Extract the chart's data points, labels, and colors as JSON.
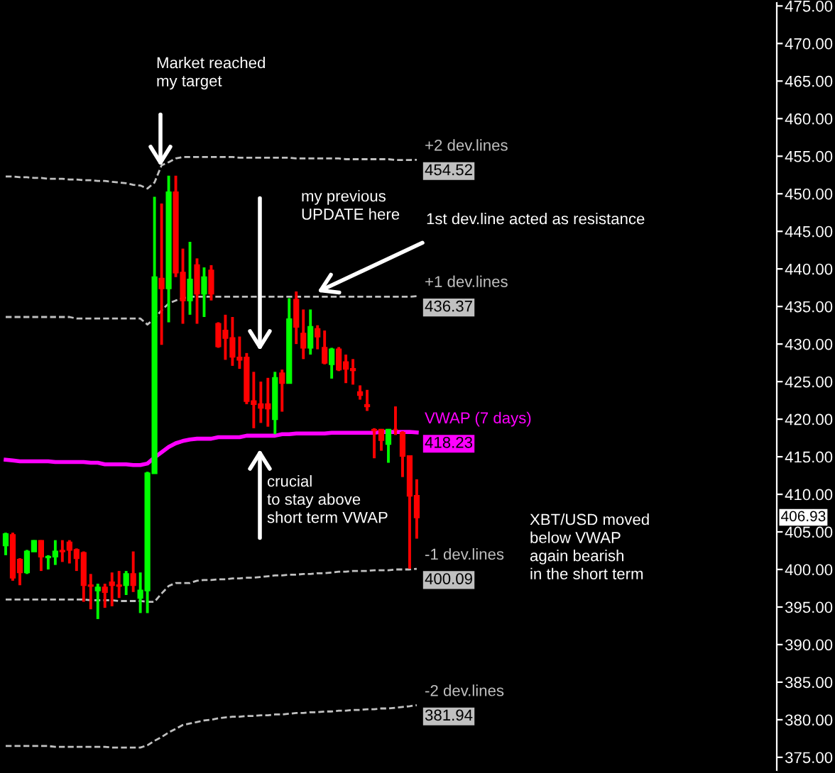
{
  "chart_data": {
    "type": "candlestick",
    "categories": [
      null,
      null,
      null,
      null,
      null,
      null,
      null,
      null,
      null,
      null,
      null,
      null,
      null,
      null,
      null,
      null,
      null,
      null,
      null,
      null,
      null,
      null,
      null,
      null,
      null,
      null,
      null,
      null,
      null,
      null,
      null,
      null,
      null,
      null,
      null,
      null,
      null,
      null,
      null,
      null,
      null,
      null,
      null,
      null,
      null,
      null,
      null,
      null,
      null,
      null,
      null,
      null,
      null,
      null,
      null,
      null,
      null,
      null,
      null
    ],
    "ohlc": [
      [
        403.2,
        404.9,
        401.9,
        404.7
      ],
      [
        404.6,
        404.9,
        398.5,
        398.9
      ],
      [
        401.3,
        401.5,
        397.9,
        399.6
      ],
      [
        399.6,
        402.6,
        399.4,
        402.4
      ],
      [
        402.4,
        403.9,
        402.4,
        403.8
      ],
      [
        403.8,
        403.9,
        399.8,
        401.7
      ],
      [
        401.6,
        401.9,
        400.0,
        401.7
      ],
      [
        401.7,
        403.9,
        400.6,
        402.4
      ],
      [
        402.5,
        403.9,
        401.0,
        402.4
      ],
      [
        403.6,
        403.9,
        400.8,
        402.6
      ],
      [
        402.6,
        402.8,
        399.8,
        401.5
      ],
      [
        402.2,
        402.4,
        395.7,
        397.9
      ],
      [
        397.9,
        399.4,
        394.7,
        397.8
      ],
      [
        397.2,
        398.1,
        393.4,
        397.6
      ],
      [
        397.6,
        398.1,
        394.9,
        397.0
      ],
      [
        398.3,
        399.6,
        395.1,
        397.9
      ],
      [
        397.9,
        399.8,
        396.2,
        397.8
      ],
      [
        397.9,
        399.8,
        396.6,
        399.4
      ],
      [
        399.4,
        402.4,
        397.0,
        397.9
      ],
      [
        396.2,
        399.6,
        394.2,
        397.2
      ],
      [
        397.2,
        413.0,
        394.2,
        412.8
      ],
      [
        412.8,
        449.6,
        412.8,
        438.9
      ],
      [
        438.7,
        448.7,
        429.9,
        437.4
      ],
      [
        437.4,
        452.4,
        432.9,
        450.2
      ],
      [
        450.2,
        452.4,
        438.9,
        439.5
      ],
      [
        439.5,
        442.7,
        432.7,
        435.8
      ],
      [
        435.8,
        443.6,
        433.9,
        438.6
      ],
      [
        440.5,
        441.4,
        432.7,
        436.7
      ],
      [
        436.7,
        440.2,
        433.6,
        438.9
      ],
      [
        439.8,
        440.5,
        435.8,
        436.7
      ],
      [
        432.7,
        432.9,
        429.5,
        429.7
      ],
      [
        431.8,
        433.9,
        427.9,
        430.8
      ],
      [
        430.8,
        433.6,
        427.1,
        428.3
      ],
      [
        428.2,
        431.0,
        426.7,
        427.9
      ],
      [
        428.2,
        428.8,
        422.0,
        422.4
      ],
      [
        422.4,
        426.3,
        418.8,
        422.0
      ],
      [
        422.0,
        425.0,
        419.5,
        421.5
      ],
      [
        422.0,
        425.5,
        419.0,
        421.4
      ],
      [
        420.0,
        426.3,
        418.0,
        425.5
      ],
      [
        426.1,
        426.6,
        421.0,
        424.8
      ],
      [
        424.8,
        436.1,
        424.8,
        433.3
      ],
      [
        435.9,
        437.0,
        430.0,
        432.3
      ],
      [
        431.4,
        434.6,
        428.0,
        429.5
      ],
      [
        429.5,
        434.6,
        428.6,
        432.3
      ],
      [
        432.0,
        432.5,
        429.3,
        431.0
      ],
      [
        429.5,
        431.8,
        427.3,
        427.5
      ],
      [
        427.3,
        429.5,
        425.4,
        429.3
      ],
      [
        429.3,
        429.6,
        426.4,
        426.6
      ],
      [
        427.6,
        428.6,
        424.8,
        426.7
      ],
      [
        426.7,
        428.0,
        424.6,
        426.5
      ],
      [
        423.6,
        424.5,
        422.6,
        423.2
      ],
      [
        421.9,
        423.9,
        421.1,
        421.7
      ],
      [
        418.6,
        418.8,
        414.8,
        418.5
      ],
      [
        418.6,
        418.7,
        415.8,
        417.2
      ],
      [
        416.7,
        418.7,
        414.2,
        418.6
      ],
      [
        418.6,
        421.7,
        417.9,
        418.6
      ],
      [
        418.2,
        418.4,
        412.3,
        415.1
      ],
      [
        415.1,
        415.1,
        400.1,
        409.8
      ],
      [
        409.8,
        412.0,
        404.1,
        406.93
      ]
    ],
    "colors": [
      "#00ff00",
      "#ff0000",
      "#ff0000",
      "#00ff00",
      "#00ff00",
      "#ff0000",
      "#00ff00",
      "#00ff00",
      "#ff0000",
      "#ff0000",
      "#ff0000",
      "#ff0000",
      "#ff0000",
      "#00ff00",
      "#ff0000",
      "#ff0000",
      "#ff0000",
      "#00ff00",
      "#ff0000",
      "#00ff00",
      "#00ff00",
      "#00ff00",
      "#ff0000",
      "#00ff00",
      "#ff0000",
      "#ff0000",
      "#00ff00",
      "#ff0000",
      "#00ff00",
      "#ff0000",
      "#ff0000",
      "#ff0000",
      "#ff0000",
      "#ff0000",
      "#ff0000",
      "#ff0000",
      "#ff0000",
      "#ff0000",
      "#00ff00",
      "#ff0000",
      "#00ff00",
      "#ff0000",
      "#ff0000",
      "#00ff00",
      "#ff0000",
      "#ff0000",
      "#00ff00",
      "#ff0000",
      "#ff0000",
      "#ff0000",
      "#ff0000",
      "#ff0000",
      "#ff0000",
      "#ff0000",
      "#00ff00",
      "#ff0000",
      "#ff0000",
      "#ff0000",
      "#ff0000"
    ],
    "series": [
      {
        "name": "+2 dev.lines",
        "type": "line",
        "line_style": "dashed",
        "color": "#c0c0c0",
        "values": [
          452.3,
          452.3,
          452.2,
          452.2,
          452.1,
          452.1,
          452.0,
          452.0,
          452.0,
          451.9,
          451.9,
          451.8,
          451.8,
          451.7,
          451.7,
          451.6,
          451.5,
          451.4,
          451.2,
          451.1,
          450.7,
          451.5,
          453.8,
          454.2,
          454.7,
          454.9,
          454.9,
          454.9,
          454.9,
          454.9,
          454.9,
          454.9,
          454.9,
          454.8,
          454.8,
          454.8,
          454.8,
          454.8,
          454.8,
          454.8,
          454.8,
          454.7,
          454.7,
          454.7,
          454.7,
          454.7,
          454.7,
          454.7,
          454.6,
          454.6,
          454.6,
          454.6,
          454.6,
          454.6,
          454.6,
          454.5,
          454.5,
          454.5,
          454.52
        ],
        "value_labels": [
          null,
          null,
          null,
          null,
          null,
          null,
          null,
          null,
          null,
          null,
          null,
          null,
          null,
          null,
          null,
          null,
          null,
          null,
          null,
          null,
          null,
          null,
          null,
          null,
          null,
          null,
          null,
          null,
          null,
          null,
          null,
          null,
          null,
          null,
          null,
          null,
          null,
          null,
          null,
          null,
          null,
          null,
          null,
          null,
          null,
          null,
          null,
          null,
          null,
          null,
          null,
          null,
          null,
          null,
          null,
          null,
          null,
          null,
          "454.52"
        ]
      },
      {
        "name": "+1 dev.lines",
        "type": "line",
        "line_style": "dashed",
        "color": "#c0c0c0",
        "values": [
          433.6,
          433.6,
          433.6,
          433.6,
          433.6,
          433.6,
          433.6,
          433.6,
          433.6,
          433.6,
          433.4,
          433.4,
          433.4,
          433.4,
          433.4,
          433.4,
          433.4,
          433.4,
          433.4,
          433.4,
          432.6,
          433.4,
          434.5,
          435.4,
          435.8,
          436.1,
          436.3,
          436.3,
          436.3,
          436.3,
          436.3,
          436.3,
          436.3,
          436.3,
          436.3,
          436.3,
          436.3,
          436.3,
          436.3,
          436.3,
          436.3,
          436.3,
          436.3,
          436.3,
          436.3,
          436.3,
          436.3,
          436.3,
          436.3,
          436.3,
          436.3,
          436.3,
          436.3,
          436.3,
          436.3,
          436.3,
          436.3,
          436.3,
          436.37
        ],
        "value_labels": [
          null,
          null,
          null,
          null,
          null,
          null,
          null,
          null,
          null,
          null,
          null,
          null,
          null,
          null,
          null,
          null,
          null,
          null,
          null,
          null,
          null,
          null,
          null,
          null,
          null,
          null,
          null,
          null,
          null,
          null,
          null,
          null,
          null,
          null,
          null,
          null,
          null,
          null,
          null,
          null,
          null,
          null,
          null,
          null,
          null,
          null,
          null,
          null,
          null,
          null,
          null,
          null,
          null,
          null,
          null,
          null,
          null,
          null,
          "436.37"
        ]
      },
      {
        "name": "VWAP (7 days)",
        "type": "line",
        "line_style": "solid",
        "color": "#ff00ff",
        "values": [
          414.6,
          414.5,
          414.4,
          414.4,
          414.4,
          414.4,
          414.4,
          414.3,
          414.3,
          414.3,
          414.3,
          414.3,
          414.2,
          414.2,
          414.0,
          414.0,
          414.0,
          414.0,
          413.9,
          413.9,
          414.1,
          414.9,
          415.6,
          416.3,
          416.8,
          417.1,
          417.3,
          417.4,
          417.4,
          417.4,
          417.6,
          417.6,
          417.6,
          417.6,
          417.8,
          417.8,
          417.8,
          417.8,
          417.8,
          418.0,
          418.0,
          418.1,
          418.1,
          418.1,
          418.1,
          418.1,
          418.2,
          418.2,
          418.2,
          418.2,
          418.2,
          418.2,
          418.2,
          418.3,
          418.3,
          418.3,
          418.3,
          418.3,
          418.23
        ],
        "value_labels": [
          null,
          null,
          null,
          null,
          null,
          null,
          null,
          null,
          null,
          null,
          null,
          null,
          null,
          null,
          null,
          null,
          null,
          null,
          null,
          null,
          null,
          null,
          null,
          null,
          null,
          null,
          null,
          null,
          null,
          null,
          null,
          null,
          null,
          null,
          null,
          null,
          null,
          null,
          null,
          null,
          null,
          null,
          null,
          null,
          null,
          null,
          null,
          null,
          null,
          null,
          null,
          null,
          null,
          null,
          null,
          null,
          null,
          null,
          "418.23"
        ]
      },
      {
        "name": "-1 dev.lines",
        "type": "line",
        "line_style": "dashed",
        "color": "#c0c0c0",
        "values": [
          396.0,
          396.0,
          396.0,
          396.0,
          396.0,
          396.0,
          396.0,
          396.0,
          396.0,
          396.0,
          396.0,
          396.0,
          395.9,
          395.9,
          395.9,
          395.9,
          395.8,
          395.8,
          395.8,
          395.8,
          395.7,
          395.7,
          396.8,
          397.8,
          398.2,
          398.2,
          398.2,
          398.5,
          398.6,
          398.6,
          398.7,
          398.7,
          398.8,
          398.8,
          398.9,
          398.9,
          399.0,
          399.1,
          399.2,
          399.2,
          399.3,
          399.3,
          399.4,
          399.4,
          399.5,
          399.5,
          399.6,
          399.7,
          399.7,
          399.8,
          399.8,
          399.8,
          399.9,
          399.9,
          399.9,
          400.0,
          400.0,
          400.0,
          400.09
        ],
        "value_labels": [
          null,
          null,
          null,
          null,
          null,
          null,
          null,
          null,
          null,
          null,
          null,
          null,
          null,
          null,
          null,
          null,
          null,
          null,
          null,
          null,
          null,
          null,
          null,
          null,
          null,
          null,
          null,
          null,
          null,
          null,
          null,
          null,
          null,
          null,
          null,
          null,
          null,
          null,
          null,
          null,
          null,
          null,
          null,
          null,
          null,
          null,
          null,
          null,
          null,
          null,
          null,
          null,
          null,
          null,
          null,
          null,
          null,
          null,
          "400.09"
        ]
      },
      {
        "name": "-2 dev.lines",
        "type": "line",
        "line_style": "dashed",
        "color": "#c0c0c0",
        "values": [
          376.5,
          376.5,
          376.5,
          376.5,
          376.5,
          376.5,
          376.5,
          376.4,
          376.4,
          376.4,
          376.4,
          376.4,
          376.4,
          376.4,
          376.4,
          376.3,
          376.3,
          376.3,
          376.3,
          376.3,
          376.6,
          377.2,
          377.7,
          378.3,
          378.8,
          379.3,
          379.5,
          379.7,
          379.9,
          380.0,
          380.2,
          380.3,
          380.4,
          380.4,
          380.5,
          380.5,
          380.6,
          380.6,
          380.7,
          380.7,
          380.8,
          380.9,
          380.9,
          381.0,
          381.0,
          381.1,
          381.1,
          381.2,
          381.2,
          381.3,
          381.3,
          381.4,
          381.4,
          381.5,
          381.5,
          381.6,
          381.7,
          381.8,
          381.94
        ],
        "value_labels": [
          null,
          null,
          null,
          null,
          null,
          null,
          null,
          null,
          null,
          null,
          null,
          null,
          null,
          null,
          null,
          null,
          null,
          null,
          null,
          null,
          null,
          null,
          null,
          null,
          null,
          null,
          null,
          null,
          null,
          null,
          null,
          null,
          null,
          null,
          null,
          null,
          null,
          null,
          null,
          null,
          null,
          null,
          null,
          null,
          null,
          null,
          null,
          null,
          null,
          null,
          null,
          null,
          null,
          null,
          null,
          null,
          null,
          null,
          "381.94"
        ]
      }
    ],
    "ylim": [
      373.1,
      475.6
    ],
    "yticks": [
      {
        "value": 375,
        "label": "375.00"
      },
      {
        "value": 380,
        "label": "380.00"
      },
      {
        "value": 385,
        "label": "385.00"
      },
      {
        "value": 390,
        "label": "390.00"
      },
      {
        "value": 395,
        "label": "395.00"
      },
      {
        "value": 400,
        "label": "400.00"
      },
      {
        "value": 405,
        "label": "405.00"
      },
      {
        "value": 410,
        "label": "410.00"
      },
      {
        "value": 415,
        "label": "415.00"
      },
      {
        "value": 420,
        "label": "420.00"
      },
      {
        "value": 425,
        "label": "425.00"
      },
      {
        "value": 430,
        "label": "430.00"
      },
      {
        "value": 435,
        "label": "435.00"
      },
      {
        "value": 440,
        "label": "440.00"
      },
      {
        "value": 445,
        "label": "445.00"
      },
      {
        "value": 450,
        "label": "450.00"
      },
      {
        "value": 455,
        "label": "455.00"
      },
      {
        "value": 460,
        "label": "460.00"
      },
      {
        "value": 465,
        "label": "465.00"
      },
      {
        "value": 470,
        "label": "470.00"
      },
      {
        "value": 475,
        "label": "475.00"
      }
    ],
    "tick_labels": "y",
    "grid": false,
    "legend": false,
    "annotations": [
      "Market reached\nmy target",
      "my previous\nUPDATE here",
      "1st dev.line acted as resistance",
      "crucial\nto stay above\nshort term VWAP",
      "XBT/USD moved\nbelow VWAP\nagain bearish\nin the short term",
      "406.93"
    ]
  }
}
